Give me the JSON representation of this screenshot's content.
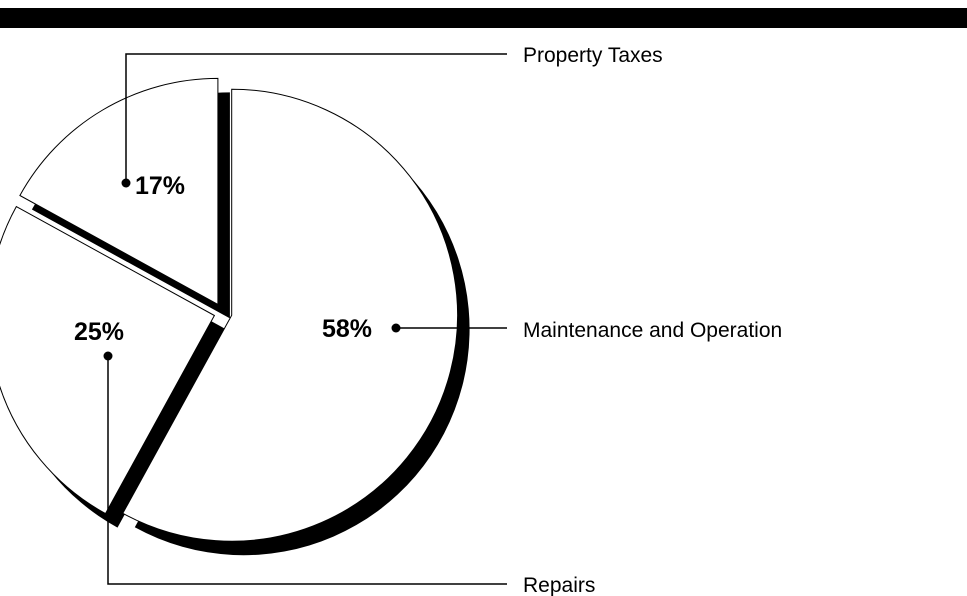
{
  "colors": {
    "background": "#ffffff",
    "ink": "#000000",
    "slice_fill": "#ffffff"
  },
  "chart_data": {
    "type": "pie",
    "title": "",
    "categories": [
      "Maintenance and Operation",
      "Repairs",
      "Property Taxes"
    ],
    "values": [
      58,
      25,
      17
    ],
    "value_labels": [
      "58%",
      "25%",
      "17%"
    ],
    "unit": "%",
    "start_angle": "12 o'clock, clockwise",
    "exploded": true,
    "shadow": true,
    "legend": "callout labels to the right"
  }
}
